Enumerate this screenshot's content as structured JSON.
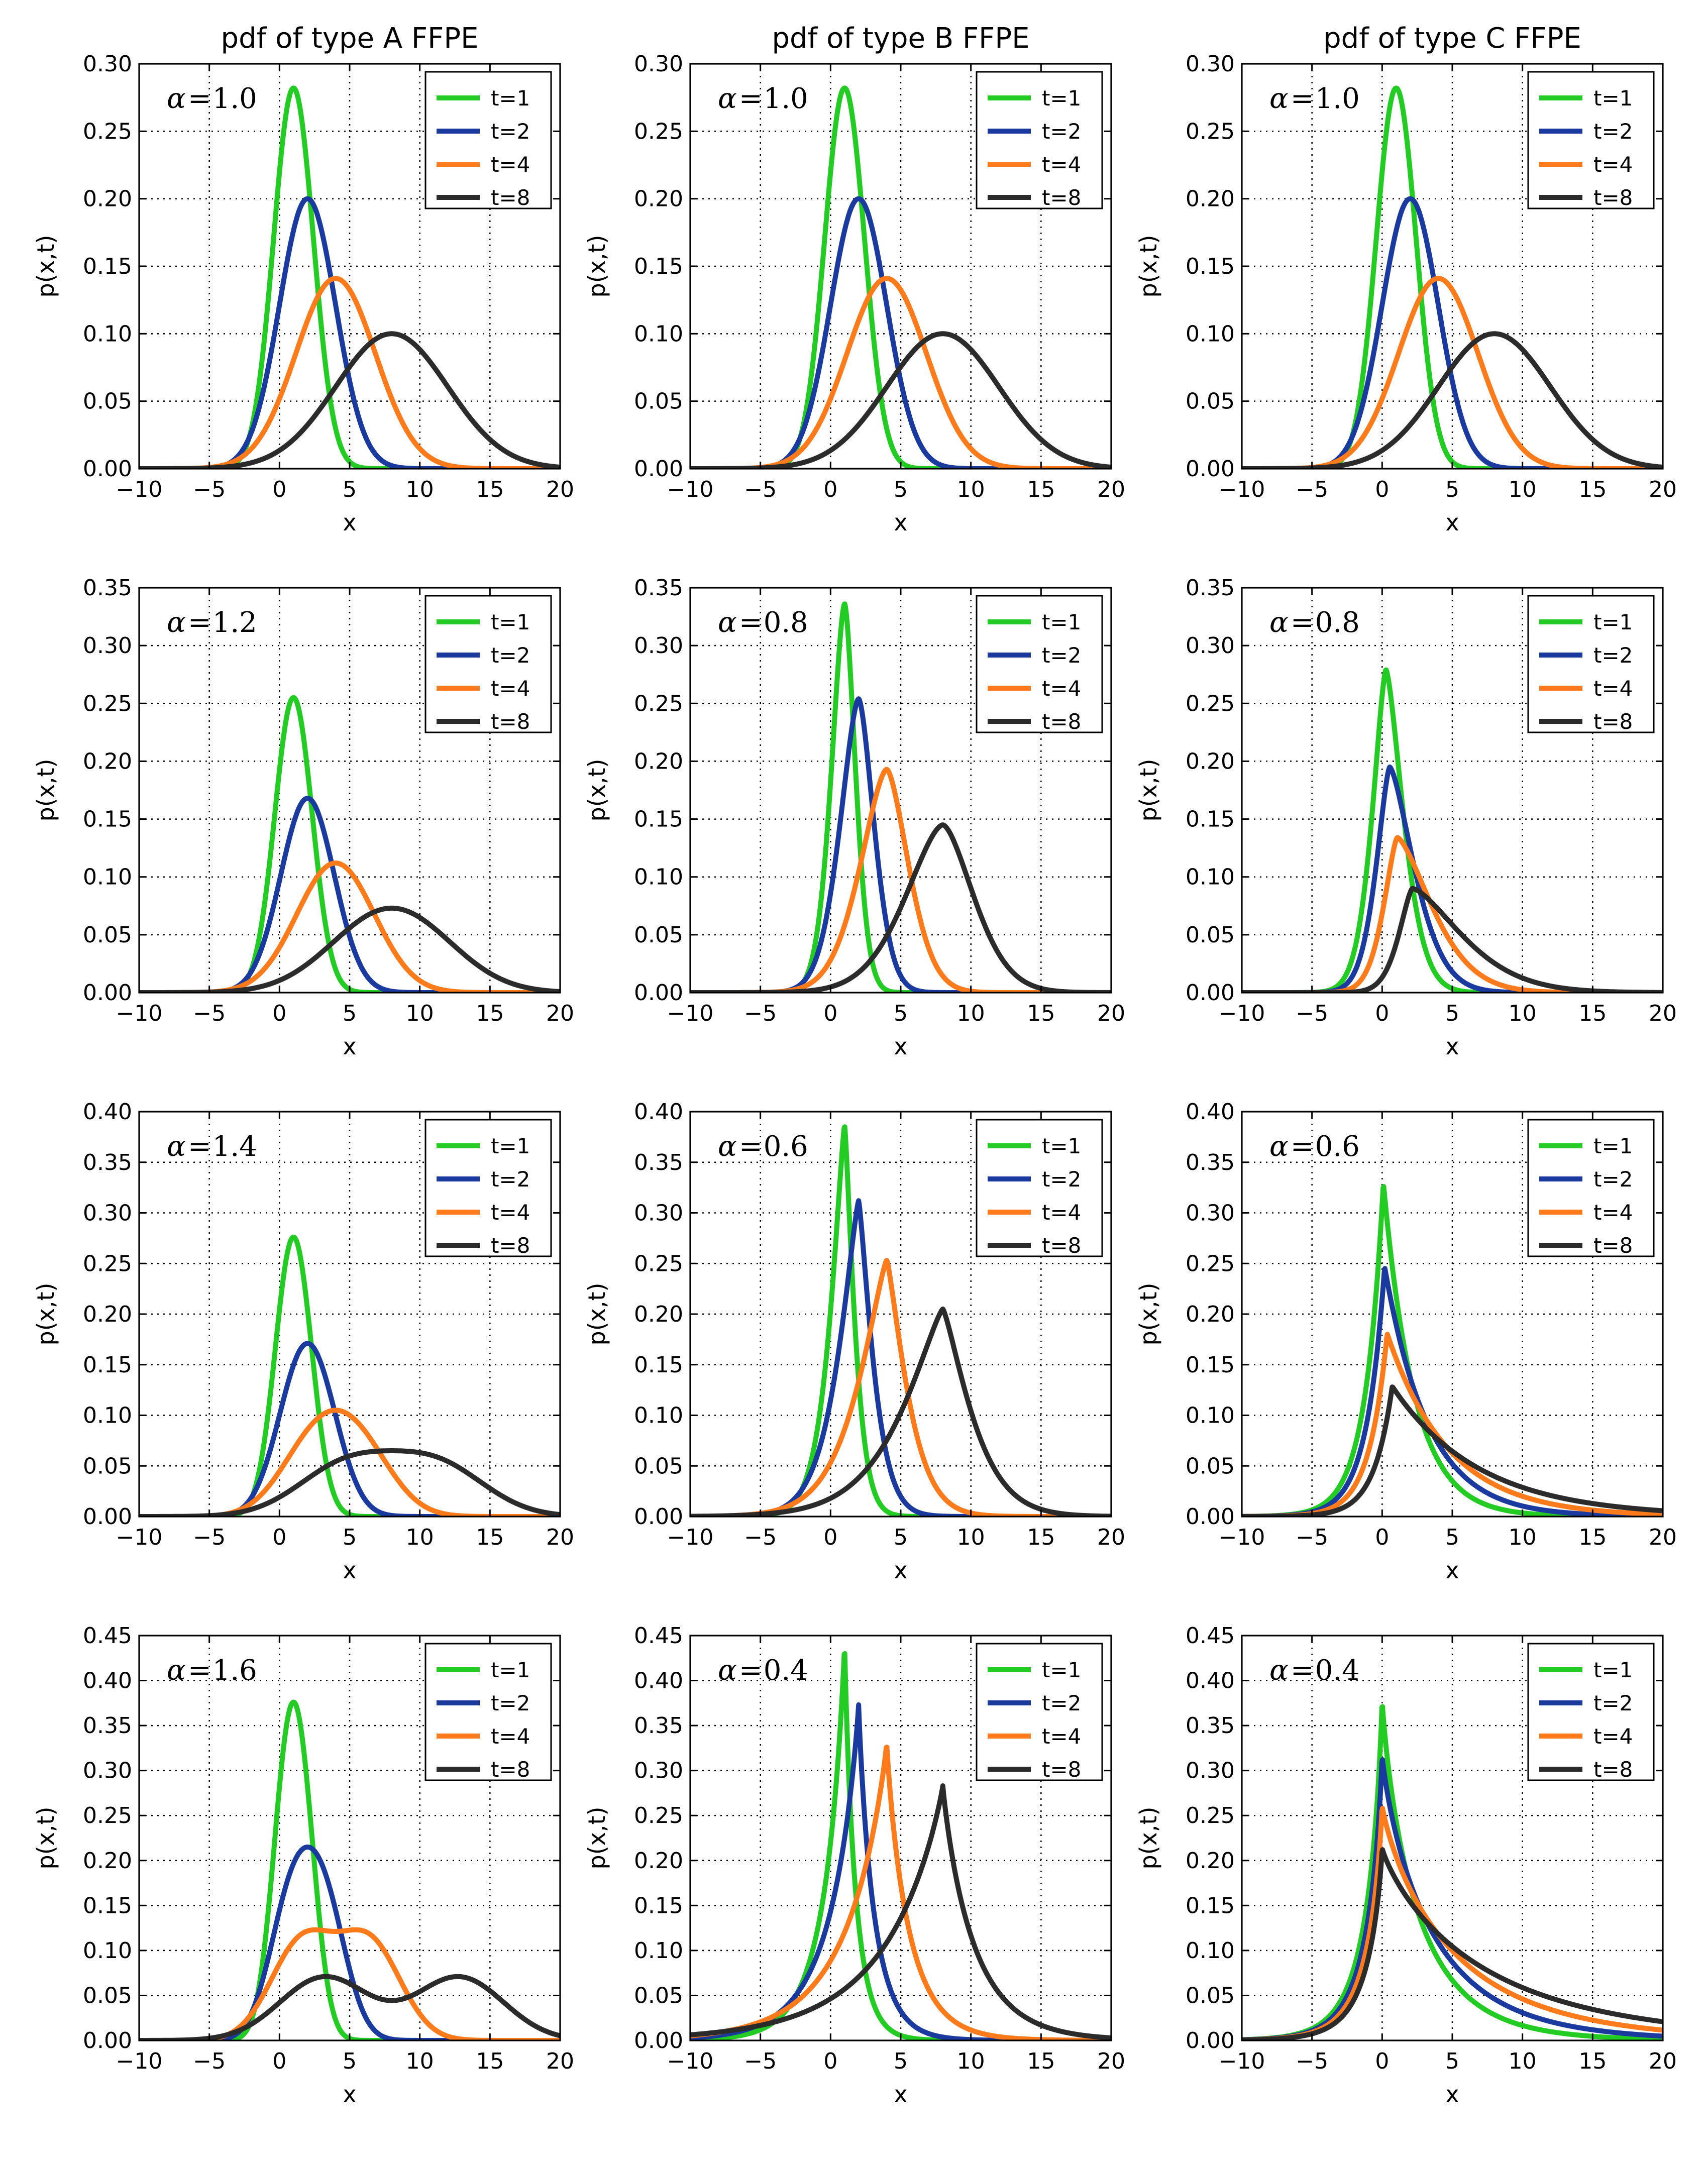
{
  "chart_data": {
    "type": "line",
    "column_titles": [
      "pdf of type A FFPE",
      "pdf of type B FFPE",
      "pdf of type C FFPE"
    ],
    "xlabel": "x",
    "ylabel": "p(x,t)",
    "xlim": [
      -10,
      20
    ],
    "xticks": [
      -10,
      -5,
      0,
      5,
      10,
      15,
      20
    ],
    "xtick_labels": [
      "−10",
      "−5",
      "0",
      "5",
      "10",
      "15",
      "20"
    ],
    "grid": "dotted",
    "legend_position": "top-right",
    "alpha_symbol": "α",
    "alpha_eq": "=",
    "series_names": [
      "t=1",
      "t=2",
      "t=4",
      "t=8"
    ],
    "series_t": [
      1,
      2,
      4,
      8
    ],
    "colors": {
      "t1": "#22cc22",
      "t2": "#1a3aa0",
      "t4": "#ff7a1a",
      "t8": "#2b2b2b"
    },
    "row_ylims": [
      [
        0,
        0.3
      ],
      [
        0,
        0.35
      ],
      [
        0,
        0.4
      ],
      [
        0,
        0.45
      ]
    ],
    "row_yticks": [
      [
        "0.00",
        "0.05",
        "0.10",
        "0.15",
        "0.20",
        "0.25",
        "0.30"
      ],
      [
        "0.00",
        "0.05",
        "0.10",
        "0.15",
        "0.20",
        "0.25",
        "0.30",
        "0.35"
      ],
      [
        "0.00",
        "0.05",
        "0.10",
        "0.15",
        "0.20",
        "0.25",
        "0.30",
        "0.35",
        "0.40"
      ],
      [
        "0.00",
        "0.05",
        "0.10",
        "0.15",
        "0.20",
        "0.25",
        "0.30",
        "0.35",
        "0.40",
        "0.45"
      ]
    ],
    "panels": [
      {
        "type": "A",
        "alpha": 1.0,
        "alpha_label": "1.0",
        "peaks": [
          0.282,
          0.2,
          0.141,
          0.1
        ]
      },
      {
        "type": "B",
        "alpha": 1.0,
        "alpha_label": "1.0",
        "peaks": [
          0.282,
          0.2,
          0.141,
          0.1
        ]
      },
      {
        "type": "C",
        "alpha": 1.0,
        "alpha_label": "1.0",
        "peaks": [
          0.282,
          0.2,
          0.141,
          0.1
        ]
      },
      {
        "type": "A",
        "alpha": 1.2,
        "alpha_label": "1.2",
        "peaks": [
          0.255,
          0.168,
          0.112,
          0.073
        ]
      },
      {
        "type": "B",
        "alpha": 0.8,
        "alpha_label": "0.8",
        "peaks": [
          0.336,
          0.254,
          0.193,
          0.145
        ]
      },
      {
        "type": "C",
        "alpha": 0.8,
        "alpha_label": "0.8",
        "peaks": [
          0.279,
          0.195,
          0.134,
          0.09
        ]
      },
      {
        "type": "A",
        "alpha": 1.4,
        "alpha_label": "1.4",
        "peaks": [
          0.276,
          0.171,
          0.105,
          0.065
        ]
      },
      {
        "type": "B",
        "alpha": 0.6,
        "alpha_label": "0.6",
        "peaks": [
          0.385,
          0.312,
          0.253,
          0.205
        ]
      },
      {
        "type": "C",
        "alpha": 0.6,
        "alpha_label": "0.6",
        "peaks": [
          0.326,
          0.245,
          0.18,
          0.128
        ]
      },
      {
        "type": "A",
        "alpha": 1.6,
        "alpha_label": "1.6",
        "peaks": [
          0.376,
          0.215,
          0.123,
          0.071
        ]
      },
      {
        "type": "B",
        "alpha": 0.4,
        "alpha_label": "0.4",
        "peaks": [
          0.43,
          0.373,
          0.326,
          0.283
        ]
      },
      {
        "type": "C",
        "alpha": 0.4,
        "alpha_label": "0.4",
        "peaks": [
          0.371,
          0.312,
          0.258,
          0.212
        ]
      }
    ]
  }
}
